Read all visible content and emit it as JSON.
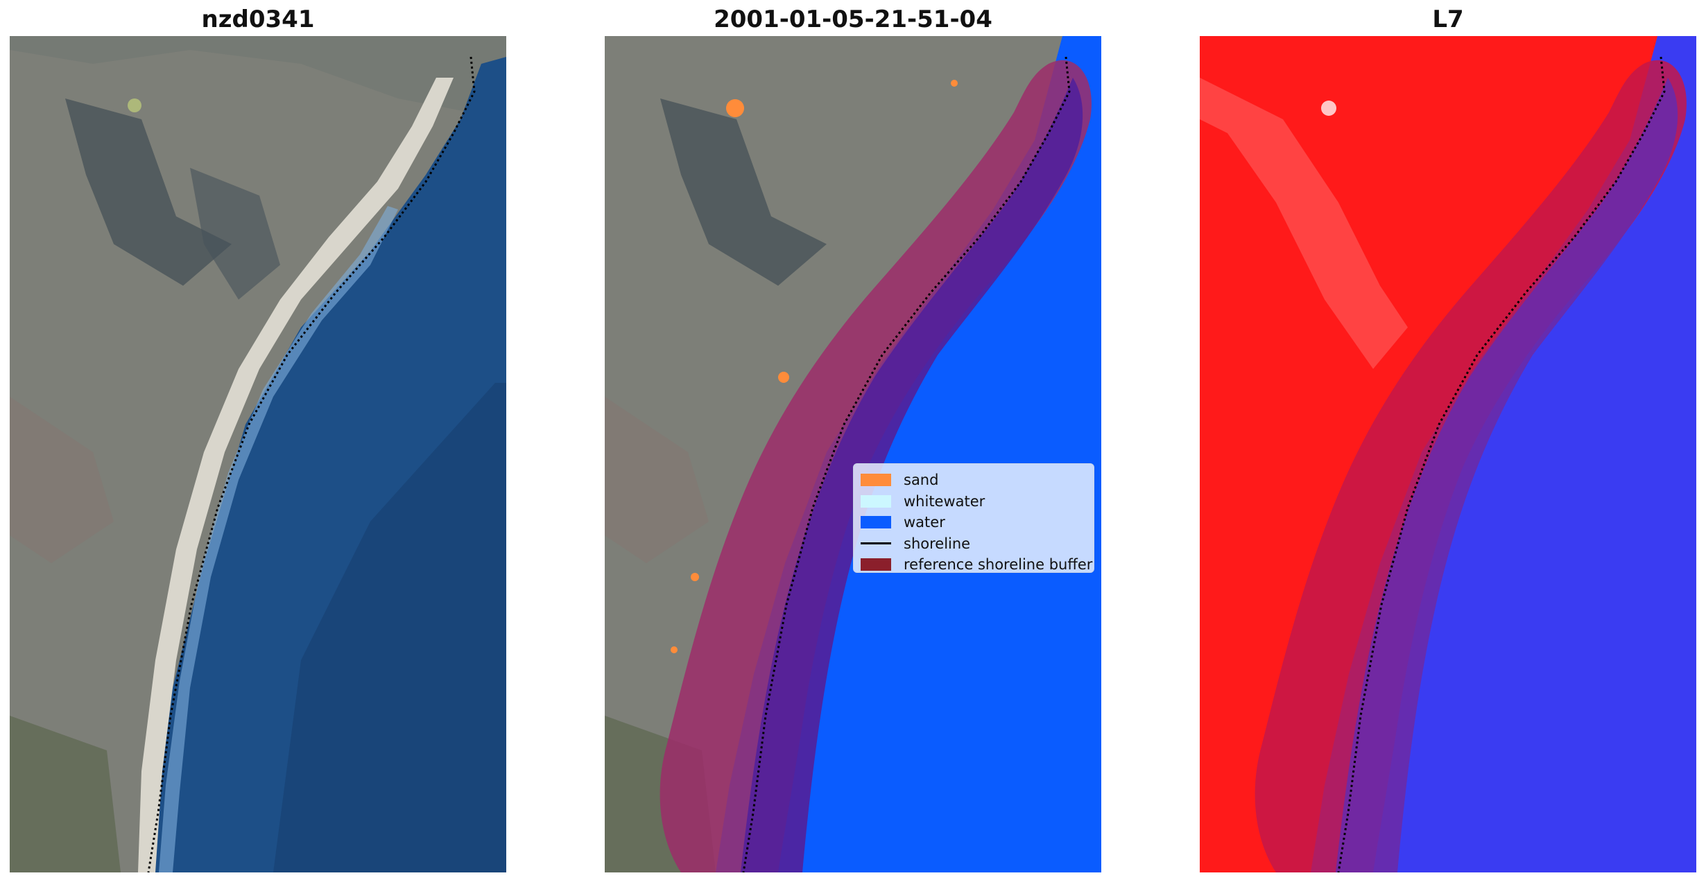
{
  "panels": [
    {
      "title": "nzd0341"
    },
    {
      "title": "2001-01-05-21-51-04"
    },
    {
      "title": "L7"
    }
  ],
  "legend": {
    "items": [
      {
        "label": "sand",
        "color": "#ff8c3a",
        "kind": "patch"
      },
      {
        "label": "whitewater",
        "color": "#ccf7ff",
        "kind": "patch"
      },
      {
        "label": "water",
        "color": "#0a5cff",
        "kind": "patch"
      },
      {
        "label": "shoreline",
        "color": "#000000",
        "kind": "line"
      },
      {
        "label": "reference shoreline buffer",
        "color": "#8b1f2b",
        "kind": "patch"
      }
    ]
  },
  "colors": {
    "land": "#7d7f78",
    "land_dark": "#3e4a52",
    "beach": "#d9d6cc",
    "ocean": "#1d4f87",
    "ocean_deep": "#17406f",
    "surf": "#7eaedb",
    "classified_water": "#0a5cff",
    "buffer_over_land": "#9c2d6a",
    "buffer_over_water": "#52209a",
    "index_land": "#ff1a1a",
    "index_water": "#3a3cf2",
    "index_buffer_land": "#c4174a",
    "index_buffer_water": "#6a2aa8",
    "shoreline": "#000000"
  }
}
